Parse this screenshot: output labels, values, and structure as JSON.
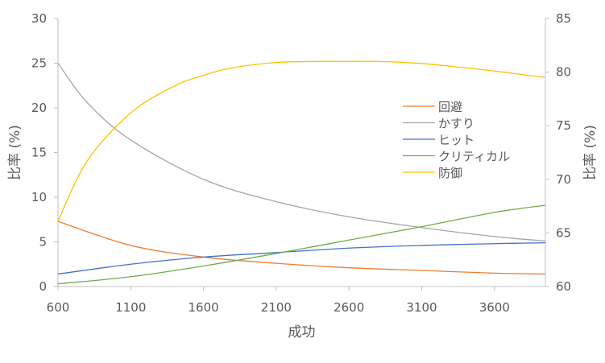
{
  "chart_data": {
    "type": "line",
    "xlabel": "成功",
    "ylabel_left": "比率 (%)",
    "ylabel_right": "比率 (%)",
    "xlim": [
      600,
      3950
    ],
    "ylim_left": [
      0,
      30
    ],
    "ylim_right": [
      60,
      85
    ],
    "x_ticks": [
      600,
      1100,
      1600,
      2100,
      2600,
      3100,
      3600
    ],
    "y_ticks_left": [
      0,
      5,
      10,
      15,
      20,
      25,
      30
    ],
    "y_ticks_right": [
      60,
      65,
      70,
      75,
      80,
      85
    ],
    "grid": false,
    "legend_position": "center-right",
    "series": [
      {
        "name": "回避",
        "color": "#ED7D31",
        "axis": "left",
        "x": [
          600,
          1100,
          1600,
          2100,
          2600,
          3100,
          3600,
          3950
        ],
        "y": [
          7.3,
          4.6,
          3.3,
          2.6,
          2.1,
          1.8,
          1.5,
          1.4
        ]
      },
      {
        "name": "かすり",
        "color": "#A5A5A5",
        "axis": "left",
        "x": [
          600,
          800,
          1100,
          1600,
          2100,
          2600,
          3100,
          3600,
          3950
        ],
        "y": [
          25.0,
          20.6,
          16.4,
          12.0,
          9.5,
          7.8,
          6.6,
          5.6,
          5.1
        ]
      },
      {
        "name": "ヒット",
        "color": "#4472C4",
        "axis": "left",
        "x": [
          600,
          1100,
          1600,
          2100,
          2600,
          3100,
          3600,
          3950
        ],
        "y": [
          1.4,
          2.5,
          3.3,
          3.8,
          4.3,
          4.6,
          4.8,
          4.9
        ]
      },
      {
        "name": "クリティカル",
        "color": "#70AD47",
        "axis": "left",
        "x": [
          600,
          1100,
          1600,
          2100,
          2600,
          3100,
          3600,
          3950
        ],
        "y": [
          0.3,
          1.1,
          2.3,
          3.7,
          5.2,
          6.7,
          8.3,
          9.1
        ]
      },
      {
        "name": "防御",
        "color": "#FFC000",
        "axis": "right",
        "x": [
          600,
          800,
          1100,
          1400,
          1600,
          1800,
          2100,
          2400,
          2600,
          2800,
          3100,
          3400,
          3600,
          3950
        ],
        "y": [
          66.1,
          71.7,
          76.2,
          78.7,
          79.7,
          80.4,
          80.9,
          81.0,
          81.0,
          81.0,
          80.8,
          80.4,
          80.1,
          79.5
        ]
      }
    ]
  }
}
